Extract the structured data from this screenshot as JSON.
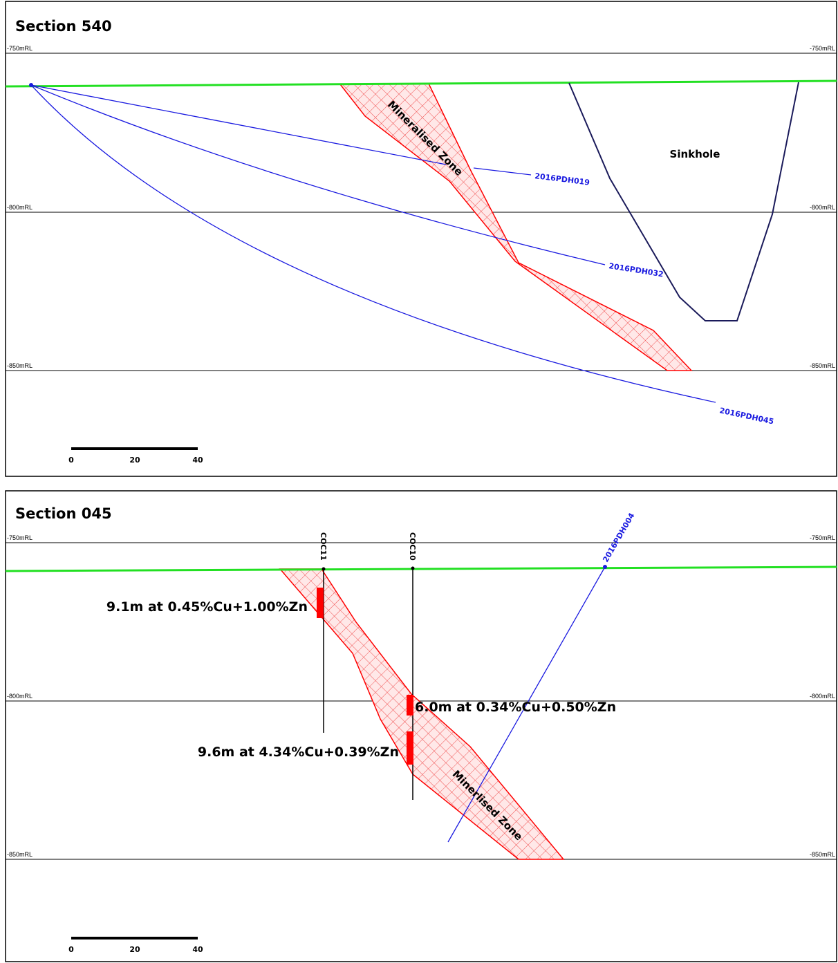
{
  "panels": [
    {
      "title": "Section 540",
      "levels": [
        "-750mRL",
        "-800mRL",
        "-850mRL"
      ],
      "zone": "Mineralised Zone",
      "sinkhole": "Sinkhole",
      "holes": [
        "2016PDH019",
        "2016PDH032",
        "2016PDH045"
      ],
      "scale": [
        "0",
        "20",
        "40"
      ]
    },
    {
      "title": "Section 045",
      "levels": [
        "-750mRL",
        "-800mRL",
        "-850mRL"
      ],
      "zone": "Minerlised Zone",
      "holes": [
        "COC11",
        "COC10",
        "2016PDH004"
      ],
      "intercepts": [
        "9.1m at 0.45%Cu+1.00%Zn",
        "6.0m at 0.34%Cu+0.50%Zn",
        "9.6m at 4.34%Cu+0.39%Zn"
      ],
      "scale": [
        "0",
        "20",
        "40"
      ]
    }
  ]
}
